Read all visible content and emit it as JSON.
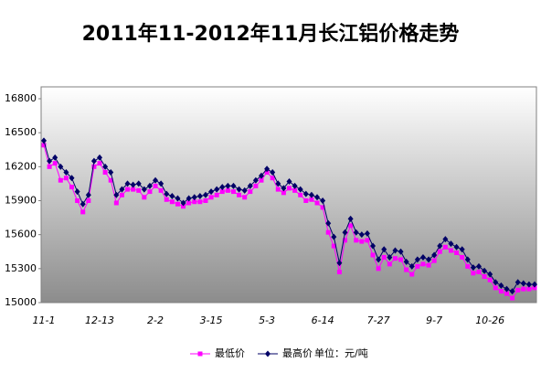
{
  "chart_data": {
    "type": "line",
    "title": "2011年11-2012年11月长江铝价格走势",
    "categories": [
      "11-1",
      null,
      null,
      null,
      null,
      null,
      null,
      null,
      null,
      null,
      "12-13",
      null,
      null,
      null,
      null,
      null,
      null,
      null,
      null,
      null,
      "2-2",
      null,
      null,
      null,
      null,
      null,
      null,
      null,
      null,
      null,
      "3-15",
      null,
      null,
      null,
      null,
      null,
      null,
      null,
      null,
      null,
      "5-3",
      null,
      null,
      null,
      null,
      null,
      null,
      null,
      null,
      null,
      "6-14",
      null,
      null,
      null,
      null,
      null,
      null,
      null,
      null,
      null,
      "7-27",
      null,
      null,
      null,
      null,
      null,
      null,
      null,
      null,
      null,
      "9-7",
      null,
      null,
      null,
      null,
      null,
      null,
      null,
      null,
      null,
      "10-26",
      null,
      null,
      null,
      null,
      null,
      null,
      null,
      null
    ],
    "series": [
      {
        "name": "最低价",
        "color": "#ff00ff",
        "marker": "square",
        "values": [
          16390,
          16200,
          16230,
          16080,
          16100,
          16020,
          15900,
          15800,
          15900,
          16200,
          16230,
          16150,
          16080,
          15880,
          15950,
          16000,
          16000,
          15990,
          15930,
          15980,
          16030,
          15990,
          15910,
          15890,
          15870,
          15850,
          15880,
          15890,
          15890,
          15900,
          15930,
          15950,
          15980,
          15990,
          15980,
          15950,
          15930,
          15980,
          16030,
          16080,
          16150,
          16100,
          16000,
          15970,
          16010,
          15990,
          15950,
          15900,
          15910,
          15880,
          15840,
          15620,
          15500,
          15270,
          15550,
          15680,
          15550,
          15540,
          15550,
          15420,
          15300,
          15400,
          15340,
          15390,
          15380,
          15290,
          15250,
          15320,
          15340,
          15330,
          15370,
          15450,
          15490,
          15460,
          15440,
          15400,
          15320,
          15260,
          15270,
          15230,
          15200,
          15130,
          15100,
          15080,
          15040,
          15110,
          15120,
          15120,
          15130
        ]
      },
      {
        "name": "最高价",
        "color": "#000066",
        "marker": "diamond",
        "values": [
          16430,
          16250,
          16280,
          16200,
          16150,
          16100,
          15980,
          15870,
          15950,
          16250,
          16280,
          16200,
          16150,
          15950,
          16000,
          16050,
          16040,
          16050,
          16000,
          16030,
          16080,
          16050,
          15960,
          15940,
          15920,
          15880,
          15920,
          15930,
          15940,
          15950,
          15980,
          16000,
          16020,
          16030,
          16030,
          16000,
          15990,
          16030,
          16080,
          16120,
          16180,
          16150,
          16050,
          16010,
          16070,
          16030,
          16000,
          15960,
          15950,
          15930,
          15900,
          15700,
          15580,
          15350,
          15620,
          15740,
          15620,
          15600,
          15610,
          15500,
          15380,
          15470,
          15400,
          15460,
          15450,
          15360,
          15320,
          15380,
          15400,
          15380,
          15420,
          15500,
          15560,
          15520,
          15490,
          15470,
          15380,
          15310,
          15320,
          15280,
          15250,
          15180,
          15150,
          15120,
          15100,
          15180,
          15170,
          15160,
          15160
        ]
      }
    ],
    "annotation": "单位：元/吨",
    "ylim": [
      15000,
      16800
    ],
    "yticks": [
      15000,
      15300,
      15600,
      15900,
      16200,
      16500,
      16800
    ],
    "grid": false
  }
}
